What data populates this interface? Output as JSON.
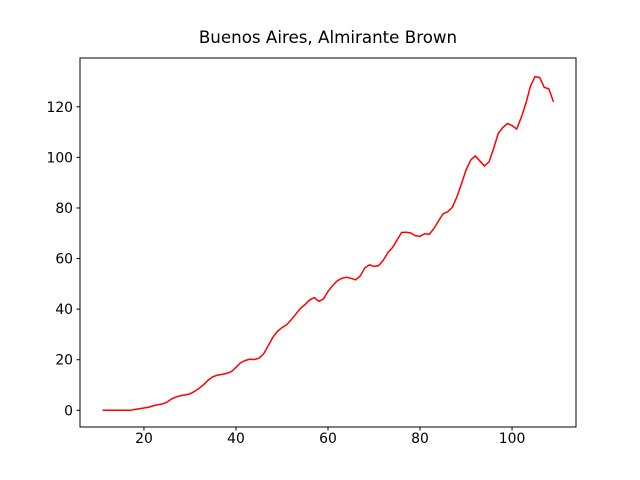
{
  "chart_data": {
    "type": "line",
    "title": "Buenos Aires, Almirante Brown",
    "x": [
      11,
      12,
      13,
      14,
      15,
      16,
      17,
      18,
      19,
      20,
      21,
      22,
      23,
      24,
      25,
      26,
      27,
      28,
      29,
      30,
      31,
      32,
      33,
      34,
      35,
      36,
      37,
      38,
      39,
      40,
      41,
      42,
      43,
      44,
      45,
      46,
      47,
      48,
      49,
      50,
      51,
      52,
      53,
      54,
      55,
      56,
      57,
      58,
      59,
      60,
      61,
      62,
      63,
      64,
      65,
      66,
      67,
      68,
      69,
      70,
      71,
      72,
      73,
      74,
      75,
      76,
      77,
      78,
      79,
      80,
      81,
      82,
      83,
      84,
      85,
      86,
      87,
      88,
      89,
      90,
      91,
      92,
      93,
      94,
      95,
      96,
      97,
      98,
      99,
      100,
      101,
      102,
      103,
      104,
      105,
      106,
      107,
      108,
      109
    ],
    "series": [
      {
        "color": "#ff0000",
        "values": [
          0,
          0,
          0,
          0,
          0,
          0,
          0,
          0.3,
          0.6,
          0.9,
          1.2,
          1.8,
          2.2,
          2.5,
          3.2,
          4.5,
          5.3,
          5.8,
          6.1,
          6.5,
          7.5,
          8.7,
          10.2,
          12,
          13.3,
          13.9,
          14.2,
          14.6,
          15.3,
          17,
          18.8,
          19.7,
          20.2,
          20.1,
          20.6,
          22.3,
          25.5,
          28.8,
          31.2,
          32.7,
          33.8,
          35.8,
          38,
          40.3,
          41.8,
          43.6,
          44.6,
          43.1,
          44,
          47,
          49.3,
          51.2,
          52.2,
          52.6,
          52.2,
          51.6,
          53.1,
          56.3,
          57.5,
          56.9,
          57.2,
          59.3,
          62.3,
          64.3,
          67.3,
          70.3,
          70.4,
          70.1,
          69,
          68.8,
          69.8,
          69.6,
          71.8,
          74.8,
          77.7,
          78.5,
          80.2,
          84.3,
          89.5,
          95,
          98.9,
          100.6,
          98.6,
          96.6,
          98.2,
          103.5,
          109.5,
          111.8,
          113.4,
          112.6,
          111.2,
          115.8,
          121.3,
          128.2,
          132,
          131.6,
          127.7,
          127.1,
          122
        ]
      }
    ],
    "xlim": [
      6.1,
      113.9
    ],
    "ylim": [
      -6.6,
      139.3
    ],
    "xticks": [
      20,
      40,
      60,
      80,
      100
    ],
    "yticks": [
      0,
      20,
      40,
      60,
      80,
      100,
      120
    ]
  }
}
